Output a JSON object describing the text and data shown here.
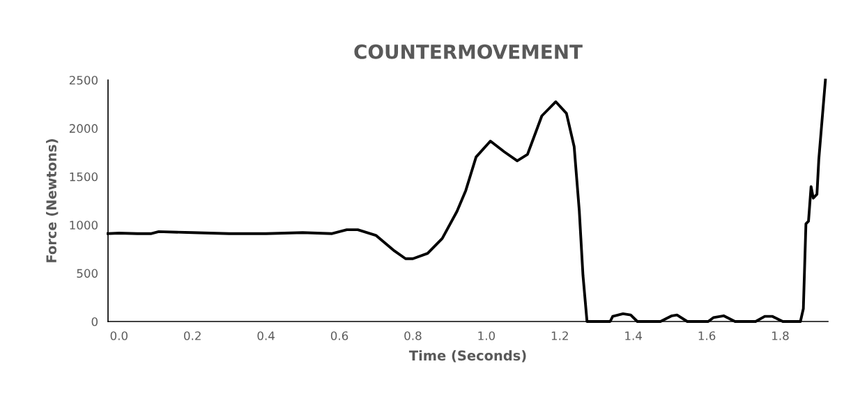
{
  "chart_data": {
    "type": "line",
    "title": "COUNTERMOVEMENT",
    "xlabel": "Time (Seconds)",
    "ylabel": "Force (Newtons)",
    "series": [
      {
        "color": "#000000",
        "x": [
          -0.03,
          0.0,
          0.05,
          0.088,
          0.108,
          0.2,
          0.3,
          0.4,
          0.5,
          0.58,
          0.62,
          0.65,
          0.7,
          0.75,
          0.78,
          0.8,
          0.84,
          0.88,
          0.92,
          0.944,
          0.972,
          1.011,
          1.049,
          1.084,
          1.112,
          1.151,
          1.189,
          1.218,
          1.239,
          1.253,
          1.263,
          1.274,
          1.337,
          1.344,
          1.372,
          1.393,
          1.411,
          1.474,
          1.505,
          1.519,
          1.547,
          1.604,
          1.618,
          1.646,
          1.677,
          1.733,
          1.758,
          1.779,
          1.807,
          1.855,
          1.863,
          1.87,
          1.877,
          1.884,
          1.89,
          1.9,
          1.905,
          1.923
        ],
        "values": [
          910,
          915,
          910,
          910,
          930,
          920,
          910,
          910,
          920,
          910,
          950,
          950,
          890,
          730,
          650,
          650,
          705,
          860,
          1140,
          1357,
          1703,
          1868,
          1756,
          1663,
          1730,
          2129,
          2275,
          2155,
          1810,
          1144,
          479,
          0,
          0,
          53,
          80,
          67,
          0,
          0,
          59,
          67,
          0,
          0,
          40,
          59,
          0,
          0,
          53,
          53,
          0,
          0,
          133,
          1011,
          1038,
          1397,
          1277,
          1317,
          1676,
          2500
        ]
      }
    ],
    "xlim": [
      -0.03,
      1.93
    ],
    "ylim": [
      0,
      2500
    ],
    "xticks": [
      {
        "value": 0,
        "label": "0.0"
      },
      {
        "value": 0.2,
        "label": "0.2"
      },
      {
        "value": 0.4,
        "label": "0.4"
      },
      {
        "value": 0.6,
        "label": "0.6"
      },
      {
        "value": 0.8,
        "label": "0.8"
      },
      {
        "value": 1.0,
        "label": "1.0"
      },
      {
        "value": 1.2,
        "label": "1.2"
      },
      {
        "value": 1.4,
        "label": "1.4"
      },
      {
        "value": 1.6,
        "label": "1.6"
      },
      {
        "value": 1.8,
        "label": "1.8"
      }
    ],
    "yticks": [
      0,
      500,
      1000,
      1500,
      2000,
      2500
    ],
    "grid": false,
    "legend": false,
    "marker": "none",
    "line_style": "solid"
  }
}
